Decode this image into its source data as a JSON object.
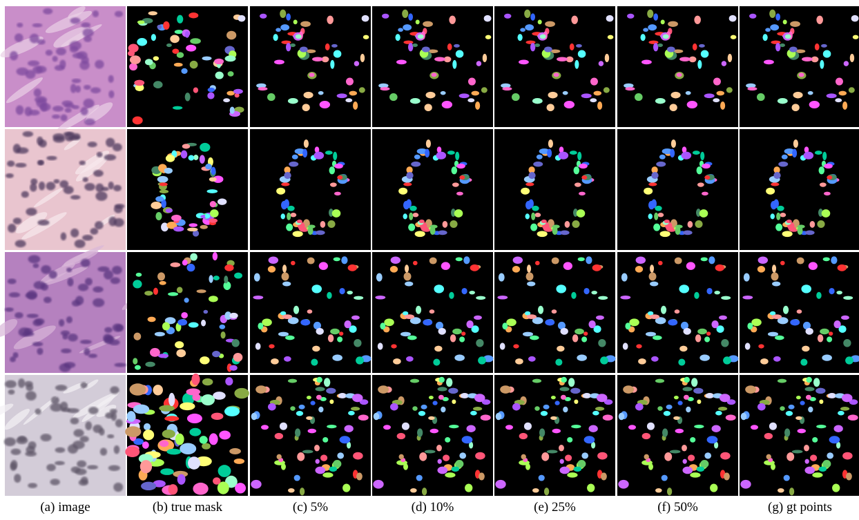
{
  "captions": [
    "(a) image",
    "(b) true mask",
    "(c) 5%",
    "(d) 10%",
    "(e) 25%",
    "(f) 50%",
    "(g) gt points"
  ]
}
